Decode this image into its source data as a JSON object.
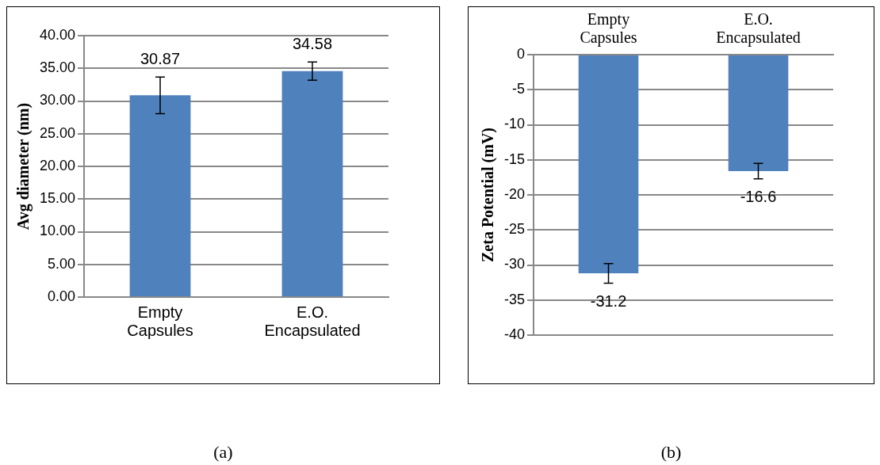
{
  "chart_data": [
    {
      "type": "bar",
      "categories": [
        "Empty Capsules",
        "E.O. Encapsulated"
      ],
      "ylabel": "Avg diameter (nm)",
      "series": [
        {
          "color": "#4f81bd",
          "values": [
            30.87,
            34.58
          ],
          "errors": [
            2.8,
            1.4
          ]
        }
      ],
      "ylim": [
        0,
        40
      ],
      "yticks": [
        {
          "value": 0,
          "label": "0.00"
        },
        {
          "value": 5,
          "label": "5.00"
        },
        {
          "value": 10,
          "label": "10.00"
        },
        {
          "value": 15,
          "label": "15.00"
        },
        {
          "value": 20,
          "label": "20.00"
        },
        {
          "value": 25,
          "label": "25.00"
        },
        {
          "value": 30,
          "label": "30.00"
        },
        {
          "value": 35,
          "label": "35.00"
        },
        {
          "value": 40,
          "label": "40.00"
        }
      ],
      "grid": "y",
      "legend": false,
      "data_labels": true,
      "annotations": [
        "(a)"
      ]
    },
    {
      "type": "bar",
      "categories": [
        "Empty Capsules",
        "E.O. Encapsulated"
      ],
      "ylabel": "Zeta Potential (mV)",
      "series": [
        {
          "color": "#4f81bd",
          "values": [
            -31.2,
            -16.6
          ],
          "errors": [
            1.4,
            1.1
          ]
        }
      ],
      "ylim": [
        -40,
        0
      ],
      "yticks": [
        0,
        -5,
        -10,
        -15,
        -20,
        -25,
        -30,
        -35,
        -40
      ],
      "grid": "y",
      "legend": false,
      "data_labels": true,
      "annotations": [
        "(b)"
      ]
    }
  ]
}
